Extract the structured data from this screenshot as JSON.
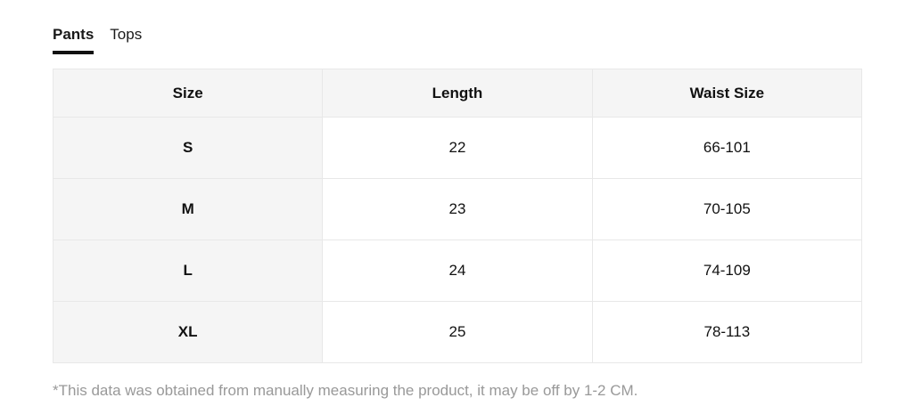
{
  "tabs": [
    {
      "label": "Pants",
      "active": true
    },
    {
      "label": "Tops",
      "active": false
    }
  ],
  "size_table": {
    "columns": [
      "Size",
      "Length",
      "Waist Size"
    ],
    "rows": [
      {
        "size": "S",
        "length": "22",
        "waist": "66-101"
      },
      {
        "size": "M",
        "length": "23",
        "waist": "70-105"
      },
      {
        "size": "L",
        "length": "24",
        "waist": "74-109"
      },
      {
        "size": "XL",
        "length": "25",
        "waist": "78-113"
      }
    ]
  },
  "footnote": "*This data was obtained from manually measuring the product, it may be off by 1-2 CM.",
  "colors": {
    "header_bg": "#f5f5f5",
    "row_label_bg": "#f5f5f5",
    "border": "#e8e8e8",
    "footnote_text": "#999999",
    "tab_active_underline": "#111111"
  }
}
